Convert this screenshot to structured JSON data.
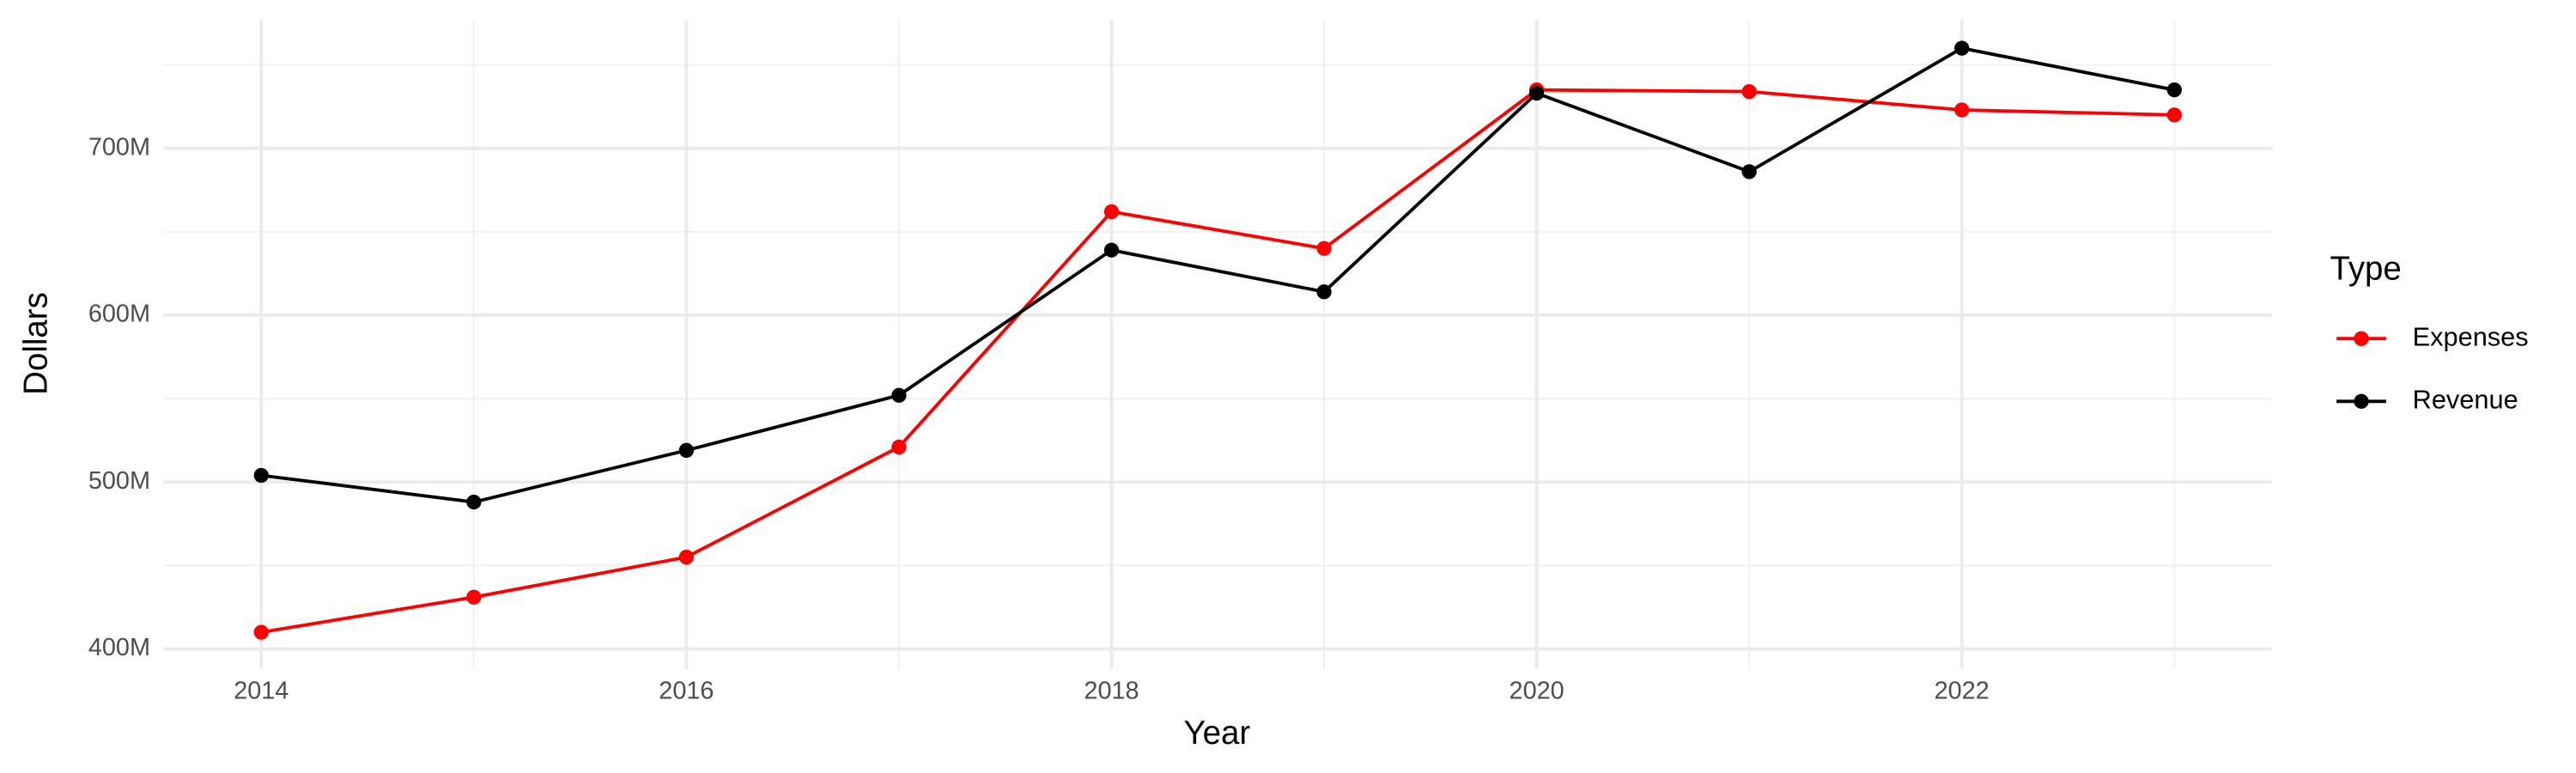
{
  "chart_data": {
    "type": "line",
    "x_label": "Year",
    "y_label": "Dollars",
    "legend_title": "Type",
    "x": [
      2014,
      2015,
      2016,
      2017,
      2018,
      2019,
      2020,
      2021,
      2022,
      2023
    ],
    "series": [
      {
        "name": "Expenses",
        "color": "#ff0000",
        "values": [
          410000000,
          431000000,
          455000000,
          521000000,
          662000000,
          640000000,
          735000000,
          734000000,
          723000000,
          720000000
        ]
      },
      {
        "name": "Revenue",
        "color": "#000000",
        "values": [
          504000000,
          488000000,
          519000000,
          552000000,
          639000000,
          614000000,
          733000000,
          686000000,
          760000000,
          735000000
        ]
      }
    ],
    "xlim": [
      2013.54,
      2023.46
    ],
    "xticks": [
      2014,
      2016,
      2018,
      2020,
      2022
    ],
    "ylim": [
      388000000,
      777000000
    ],
    "yticks": [
      {
        "value": 400000000,
        "label": "400M"
      },
      {
        "value": 500000000,
        "label": "500M"
      },
      {
        "value": 600000000,
        "label": "600M"
      },
      {
        "value": 700000000,
        "label": "700M"
      }
    ],
    "grid": true,
    "legend": "right"
  }
}
